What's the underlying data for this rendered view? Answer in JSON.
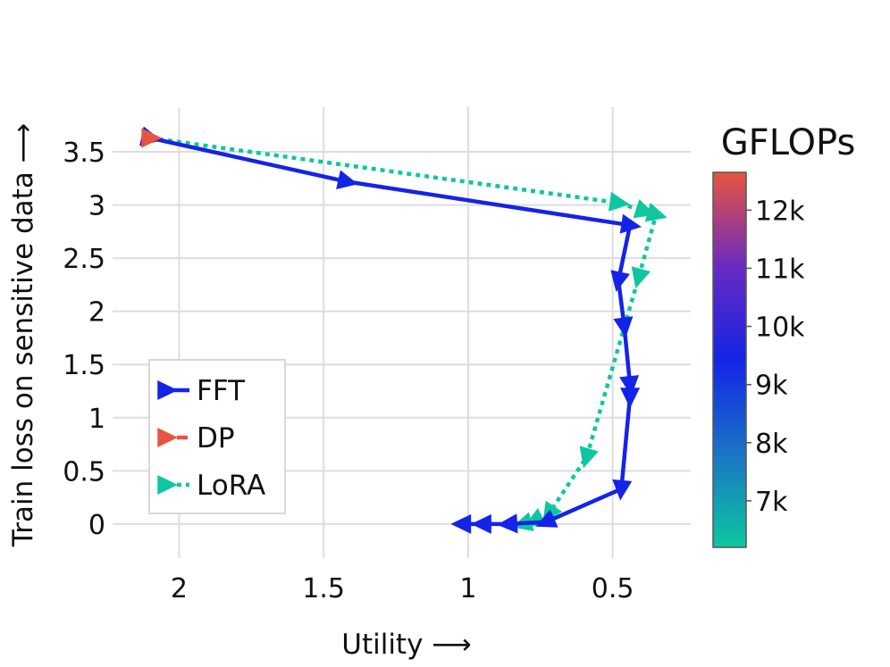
{
  "chart_data": {
    "type": "line",
    "xlabel": "Utility ⟶",
    "ylabel": "Train loss on sensitive data ⟶",
    "xlim": [
      2.23,
      0.23
    ],
    "ylim": [
      -0.32,
      3.92
    ],
    "x_reversed": true,
    "x_ticks": [
      2,
      1.5,
      1,
      0.5
    ],
    "x_tick_labels": [
      "2",
      "1.5",
      "1",
      "0.5"
    ],
    "y_ticks": [
      0,
      0.5,
      1,
      1.5,
      2,
      2.5,
      3,
      3.5
    ],
    "y_tick_labels": [
      "0",
      "0.5",
      "1",
      "1.5",
      "2",
      "2.5",
      "3",
      "3.5"
    ],
    "grid": true,
    "legend_position": "lower-left",
    "colors": {
      "FFT": "#1424e6",
      "DP": "#e8553e",
      "LoRA": "#0ec7a0"
    },
    "series": [
      {
        "name": "FFT",
        "style": "solid",
        "x": [
          2.1,
          1.42,
          0.44,
          0.48,
          0.46,
          0.44,
          0.44,
          0.47,
          0.73,
          0.86,
          0.95,
          1.02
        ],
        "y": [
          3.63,
          3.22,
          2.81,
          2.29,
          1.86,
          1.31,
          1.2,
          0.33,
          0.02,
          0.0,
          0.0,
          0.0
        ]
      },
      {
        "name": "DP",
        "style": "dashed",
        "x": [
          2.1
        ],
        "y": [
          3.63
        ]
      },
      {
        "name": "LoRA",
        "style": "dotted",
        "x": [
          2.1,
          0.48,
          0.39,
          0.35,
          0.41,
          0.59,
          0.72,
          0.77,
          0.81
        ],
        "y": [
          3.63,
          3.02,
          2.94,
          2.91,
          2.32,
          0.63,
          0.1,
          0.03,
          0.0
        ]
      }
    ],
    "colorbar": {
      "title": "GFLOPs",
      "ticks": [
        "12k",
        "11k",
        "10k",
        "9k",
        "8k",
        "7k"
      ],
      "tick_values": [
        12000,
        11000,
        10000,
        9000,
        8000,
        7000
      ],
      "range": [
        6200,
        12650
      ],
      "colors": [
        "#0ec7a0",
        "#1a74c6",
        "#1424e6",
        "#6a2ac0",
        "#e8553e"
      ]
    }
  }
}
